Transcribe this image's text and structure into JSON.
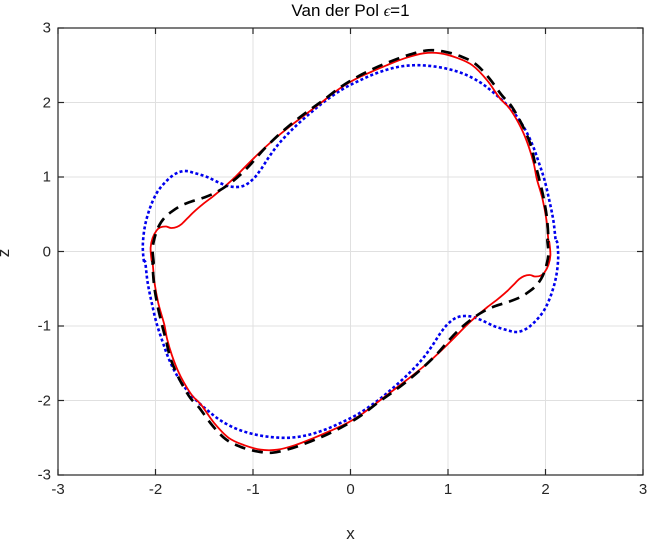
{
  "title": {
    "prefix": "Van der Pol ",
    "symbol": "ϵ",
    "suffix": "=1"
  },
  "chart_data": {
    "type": "line",
    "title": "Van der Pol ϵ=1",
    "xlabel": "x",
    "ylabel": "z",
    "xlim": [
      -3,
      3
    ],
    "ylim": [
      -3,
      3
    ],
    "xticks": [
      "-3",
      "-2",
      "-1",
      "0",
      "1",
      "2",
      "3"
    ],
    "yticks": [
      "-3",
      "-2",
      "-1",
      "0",
      "1",
      "2",
      "3"
    ],
    "xtick_values": [
      -3,
      -2,
      -1,
      0,
      1,
      2,
      3
    ],
    "ytick_values": [
      -3,
      -2,
      -1,
      0,
      1,
      2,
      3
    ],
    "grid": true,
    "legend": "none",
    "axis_color": "#262626",
    "grid_color": "#e0e0e0",
    "background": "#ffffff",
    "series": [
      {
        "name": "blue-dotted-curve",
        "style": "dotted",
        "color": "#0000ee",
        "width": 2.6,
        "closed": true,
        "points": [
          [
            -2.12,
            -0.12
          ],
          [
            -2.13,
            0.08
          ],
          [
            -2.11,
            0.33
          ],
          [
            -2.06,
            0.57
          ],
          [
            -1.99,
            0.78
          ],
          [
            -1.9,
            0.93
          ],
          [
            -1.8,
            1.04
          ],
          [
            -1.7,
            1.08
          ],
          [
            -1.59,
            1.05
          ],
          [
            -1.47,
            1.0
          ],
          [
            -1.34,
            0.92
          ],
          [
            -1.22,
            0.87
          ],
          [
            -1.1,
            0.88
          ],
          [
            -1.0,
            0.97
          ],
          [
            -0.92,
            1.1
          ],
          [
            -0.83,
            1.28
          ],
          [
            -0.72,
            1.47
          ],
          [
            -0.58,
            1.66
          ],
          [
            -0.42,
            1.85
          ],
          [
            -0.26,
            2.02
          ],
          [
            -0.08,
            2.18
          ],
          [
            0.1,
            2.3
          ],
          [
            0.28,
            2.4
          ],
          [
            0.46,
            2.47
          ],
          [
            0.64,
            2.5
          ],
          [
            0.82,
            2.49
          ],
          [
            1.0,
            2.45
          ],
          [
            1.17,
            2.38
          ],
          [
            1.33,
            2.27
          ],
          [
            1.46,
            2.14
          ],
          [
            1.58,
            2.0
          ],
          [
            1.69,
            1.84
          ],
          [
            1.79,
            1.64
          ],
          [
            1.87,
            1.42
          ],
          [
            1.93,
            1.2
          ],
          [
            1.99,
            0.96
          ],
          [
            2.04,
            0.68
          ],
          [
            2.08,
            0.42
          ],
          [
            2.105,
            0.15
          ],
          [
            2.12,
            0.12
          ],
          [
            2.13,
            -0.08
          ],
          [
            2.11,
            -0.33
          ],
          [
            2.06,
            -0.57
          ],
          [
            1.99,
            -0.78
          ],
          [
            1.9,
            -0.93
          ],
          [
            1.8,
            -1.04
          ],
          [
            1.7,
            -1.08
          ],
          [
            1.59,
            -1.05
          ],
          [
            1.47,
            -1.0
          ],
          [
            1.34,
            -0.92
          ],
          [
            1.22,
            -0.87
          ],
          [
            1.1,
            -0.88
          ],
          [
            1.0,
            -0.97
          ],
          [
            0.92,
            -1.1
          ],
          [
            0.83,
            -1.28
          ],
          [
            0.72,
            -1.47
          ],
          [
            0.58,
            -1.66
          ],
          [
            0.42,
            -1.85
          ],
          [
            0.26,
            -2.02
          ],
          [
            0.08,
            -2.18
          ],
          [
            -0.1,
            -2.3
          ],
          [
            -0.28,
            -2.4
          ],
          [
            -0.46,
            -2.47
          ],
          [
            -0.64,
            -2.5
          ],
          [
            -0.82,
            -2.49
          ],
          [
            -1.0,
            -2.45
          ],
          [
            -1.17,
            -2.38
          ],
          [
            -1.33,
            -2.27
          ],
          [
            -1.46,
            -2.14
          ],
          [
            -1.58,
            -2.0
          ],
          [
            -1.69,
            -1.84
          ],
          [
            -1.79,
            -1.64
          ],
          [
            -1.87,
            -1.42
          ],
          [
            -1.93,
            -1.2
          ],
          [
            -1.99,
            -0.96
          ],
          [
            -2.04,
            -0.68
          ],
          [
            -2.08,
            -0.42
          ],
          [
            -2.105,
            -0.15
          ]
        ]
      },
      {
        "name": "red-solid-curve",
        "style": "solid",
        "color": "#f40000",
        "width": 1.8,
        "closed": true,
        "points": [
          [
            -2.04,
            -0.12
          ],
          [
            -2.05,
            0.05
          ],
          [
            -2.03,
            0.18
          ],
          [
            -1.99,
            0.28
          ],
          [
            -1.95,
            0.325
          ],
          [
            -1.89,
            0.335
          ],
          [
            -1.84,
            0.315
          ],
          [
            -1.78,
            0.33
          ],
          [
            -1.73,
            0.37
          ],
          [
            -1.67,
            0.45
          ],
          [
            -1.6,
            0.54
          ],
          [
            -1.51,
            0.64
          ],
          [
            -1.41,
            0.74
          ],
          [
            -1.3,
            0.86
          ],
          [
            -1.19,
            0.99
          ],
          [
            -1.07,
            1.15
          ],
          [
            -0.93,
            1.33
          ],
          [
            -0.78,
            1.51
          ],
          [
            -0.62,
            1.68
          ],
          [
            -0.46,
            1.84
          ],
          [
            -0.3,
            2.0
          ],
          [
            -0.13,
            2.17
          ],
          [
            0.03,
            2.3
          ],
          [
            0.21,
            2.41
          ],
          [
            0.39,
            2.51
          ],
          [
            0.57,
            2.6
          ],
          [
            0.75,
            2.66
          ],
          [
            0.92,
            2.66
          ],
          [
            1.09,
            2.6
          ],
          [
            1.25,
            2.5
          ],
          [
            1.4,
            2.3
          ],
          [
            1.53,
            2.06
          ],
          [
            1.62,
            1.94
          ],
          [
            1.7,
            1.78
          ],
          [
            1.77,
            1.6
          ],
          [
            1.83,
            1.4
          ],
          [
            1.88,
            1.18
          ],
          [
            1.91,
            0.98
          ],
          [
            1.97,
            0.7
          ],
          [
            2.01,
            0.42
          ],
          [
            2.03,
            0.15
          ],
          [
            2.04,
            0.12
          ],
          [
            2.05,
            -0.05
          ],
          [
            2.03,
            -0.18
          ],
          [
            1.99,
            -0.28
          ],
          [
            1.95,
            -0.325
          ],
          [
            1.89,
            -0.335
          ],
          [
            1.84,
            -0.315
          ],
          [
            1.78,
            -0.33
          ],
          [
            1.73,
            -0.37
          ],
          [
            1.67,
            -0.45
          ],
          [
            1.6,
            -0.54
          ],
          [
            1.51,
            -0.64
          ],
          [
            1.41,
            -0.74
          ],
          [
            1.3,
            -0.86
          ],
          [
            1.19,
            -0.99
          ],
          [
            1.07,
            -1.15
          ],
          [
            0.93,
            -1.33
          ],
          [
            0.78,
            -1.51
          ],
          [
            0.62,
            -1.68
          ],
          [
            0.46,
            -1.84
          ],
          [
            0.3,
            -2.0
          ],
          [
            0.13,
            -2.17
          ],
          [
            -0.03,
            -2.3
          ],
          [
            -0.21,
            -2.41
          ],
          [
            -0.39,
            -2.51
          ],
          [
            -0.57,
            -2.6
          ],
          [
            -0.75,
            -2.66
          ],
          [
            -0.92,
            -2.66
          ],
          [
            -1.09,
            -2.6
          ],
          [
            -1.25,
            -2.5
          ],
          [
            -1.4,
            -2.3
          ],
          [
            -1.53,
            -2.06
          ],
          [
            -1.62,
            -1.94
          ],
          [
            -1.7,
            -1.78
          ],
          [
            -1.77,
            -1.6
          ],
          [
            -1.83,
            -1.4
          ],
          [
            -1.88,
            -1.18
          ],
          [
            -1.91,
            -0.98
          ],
          [
            -1.97,
            -0.7
          ],
          [
            -2.01,
            -0.42
          ],
          [
            -2.03,
            -0.15
          ]
        ]
      },
      {
        "name": "black-dashed-curve",
        "style": "dashed",
        "color": "#000000",
        "width": 2.7,
        "closed": true,
        "points": [
          [
            -2.02,
            -0.15
          ],
          [
            -2.03,
            0.03
          ],
          [
            -2.01,
            0.18
          ],
          [
            -1.97,
            0.33
          ],
          [
            -1.91,
            0.45
          ],
          [
            -1.83,
            0.54
          ],
          [
            -1.73,
            0.62
          ],
          [
            -1.61,
            0.68
          ],
          [
            -1.49,
            0.73
          ],
          [
            -1.37,
            0.8
          ],
          [
            -1.25,
            0.9
          ],
          [
            -1.13,
            1.03
          ],
          [
            -1.01,
            1.19
          ],
          [
            -0.89,
            1.37
          ],
          [
            -0.75,
            1.55
          ],
          [
            -0.6,
            1.72
          ],
          [
            -0.44,
            1.88
          ],
          [
            -0.28,
            2.03
          ],
          [
            -0.11,
            2.2
          ],
          [
            0.05,
            2.33
          ],
          [
            0.23,
            2.45
          ],
          [
            0.41,
            2.55
          ],
          [
            0.6,
            2.64
          ],
          [
            0.8,
            2.7
          ],
          [
            0.97,
            2.68
          ],
          [
            1.13,
            2.62
          ],
          [
            1.28,
            2.52
          ],
          [
            1.42,
            2.33
          ],
          [
            1.55,
            2.1
          ],
          [
            1.64,
            1.97
          ],
          [
            1.72,
            1.8
          ],
          [
            1.79,
            1.62
          ],
          [
            1.85,
            1.42
          ],
          [
            1.89,
            1.2
          ],
          [
            1.93,
            1.0
          ],
          [
            1.98,
            0.72
          ],
          [
            2.015,
            0.44
          ],
          [
            2.03,
            0.15
          ],
          [
            2.02,
            0.15
          ],
          [
            2.03,
            -0.03
          ],
          [
            2.01,
            -0.18
          ],
          [
            1.97,
            -0.33
          ],
          [
            1.91,
            -0.45
          ],
          [
            1.83,
            -0.54
          ],
          [
            1.73,
            -0.62
          ],
          [
            1.61,
            -0.68
          ],
          [
            1.49,
            -0.73
          ],
          [
            1.37,
            -0.8
          ],
          [
            1.25,
            -0.9
          ],
          [
            1.13,
            -1.03
          ],
          [
            1.01,
            -1.19
          ],
          [
            0.89,
            -1.37
          ],
          [
            0.75,
            -1.55
          ],
          [
            0.6,
            -1.72
          ],
          [
            0.44,
            -1.88
          ],
          [
            0.28,
            -2.03
          ],
          [
            0.11,
            -2.2
          ],
          [
            -0.05,
            -2.33
          ],
          [
            -0.23,
            -2.45
          ],
          [
            -0.41,
            -2.55
          ],
          [
            -0.6,
            -2.64
          ],
          [
            -0.8,
            -2.7
          ],
          [
            -0.97,
            -2.68
          ],
          [
            -1.13,
            -2.62
          ],
          [
            -1.28,
            -2.52
          ],
          [
            -1.42,
            -2.33
          ],
          [
            -1.55,
            -2.1
          ],
          [
            -1.64,
            -1.97
          ],
          [
            -1.72,
            -1.8
          ],
          [
            -1.79,
            -1.62
          ],
          [
            -1.85,
            -1.42
          ],
          [
            -1.89,
            -1.2
          ],
          [
            -1.93,
            -1.0
          ],
          [
            -1.98,
            -0.72
          ],
          [
            -2.015,
            -0.44
          ],
          [
            -2.03,
            -0.15
          ]
        ]
      }
    ]
  }
}
